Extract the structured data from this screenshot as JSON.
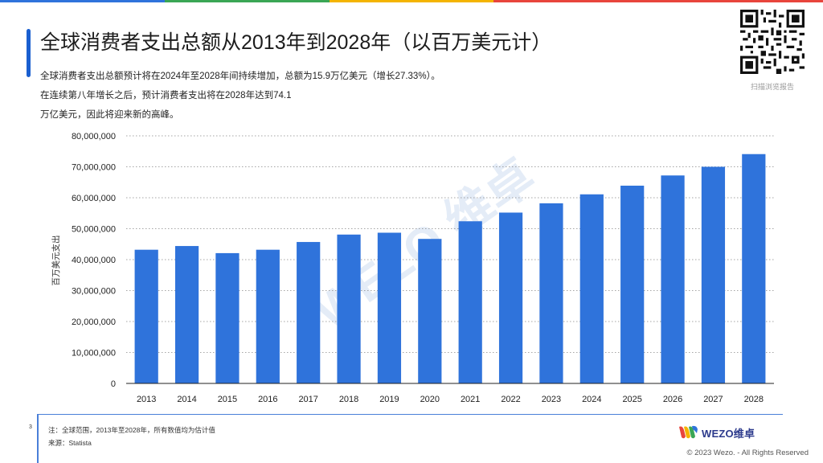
{
  "title": "全球消费者支出总额从2013年到2028年（以百万美元计）",
  "description": [
    "全球消费者支出总额预计将在2024年至2028年间持续增加，总额为15.9万亿美元（增长27.33%）。",
    "在连续第八年增长之后，预计消费者支出将在2028年达到74.1",
    "万亿美元，因此将迎来新的高峰。"
  ],
  "qr_caption": "扫描浏览报告",
  "chart_data": {
    "type": "bar",
    "categories": [
      "2013",
      "2014",
      "2015",
      "2016",
      "2017",
      "2018",
      "2019",
      "2020",
      "2021",
      "2022",
      "2023",
      "2024",
      "2025",
      "2026",
      "2027",
      "2028"
    ],
    "values": [
      43200000,
      44400000,
      42100000,
      43200000,
      45700000,
      48100000,
      48700000,
      46700000,
      52400000,
      55200000,
      58200000,
      61100000,
      63900000,
      67200000,
      70000000,
      74100000
    ],
    "ylabel": "百万美元支出",
    "xlabel": "",
    "ylim": [
      0,
      80000000
    ],
    "yticks": [
      0,
      10000000,
      20000000,
      30000000,
      40000000,
      50000000,
      60000000,
      70000000,
      80000000
    ],
    "ytick_labels": [
      "0",
      "10,000,000",
      "20,000,000",
      "30,000,000",
      "40,000,000",
      "50,000,000",
      "60,000,000",
      "70,000,000",
      "80,000,000"
    ],
    "bar_color": "#2f73db",
    "grid": true
  },
  "footer": {
    "page_number": "3",
    "note": "注：全球范围，2013年至2028年，所有数值均为估计值",
    "source": "来源：Statista",
    "logo_text": "WEZO维卓",
    "copyright": "© 2023 Wezo. - All Rights Reserved"
  },
  "colors": {
    "accent": "#1a5fd0",
    "stripe": [
      "#2f73db",
      "#3aa655",
      "#f4b400",
      "#e8453c",
      "#e8453c"
    ]
  }
}
